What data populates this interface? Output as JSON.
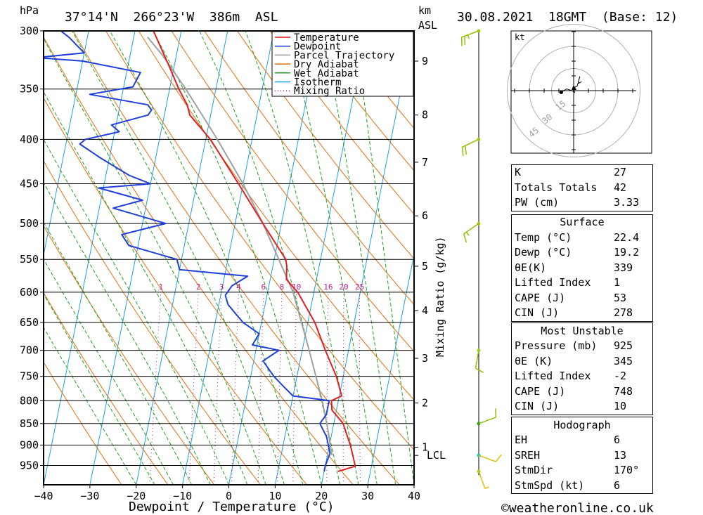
{
  "header": {
    "unit_hpa": "hPa",
    "location": "37°14'N  266°23'W  386m  ASL",
    "unit_km": "km",
    "unit_asl": "ASL",
    "datetime": "30.08.2021  18GMT  (Base: 12)"
  },
  "hodograph": {
    "unit": "kt",
    "ring_labels": [
      "15",
      "30",
      "45"
    ]
  },
  "footer": {
    "copyright": "©weatheronline.co.uk"
  },
  "chart_data": {
    "type": "skew-t log-p",
    "xlabel": "Dewpoint / Temperature (°C)",
    "ylabel_left": "hPa",
    "ylabel_right": "Mixing Ratio (g/kg)",
    "x_ticks": [
      -40,
      -30,
      -20,
      -10,
      0,
      10,
      20,
      30,
      40
    ],
    "pressure_ticks": [
      300,
      350,
      400,
      450,
      500,
      550,
      600,
      650,
      700,
      750,
      800,
      850,
      900,
      950
    ],
    "km_ticks": [
      {
        "label": "9",
        "p": 325
      },
      {
        "label": "8",
        "p": 375
      },
      {
        "label": "7",
        "p": 425
      },
      {
        "label": "6",
        "p": 490
      },
      {
        "label": "5",
        "p": 560
      },
      {
        "label": "4",
        "p": 630
      },
      {
        "label": "3",
        "p": 715
      },
      {
        "label": "2",
        "p": 805
      },
      {
        "label": "1",
        "p": 905
      },
      {
        "label": "LCL",
        "p": 925
      }
    ],
    "mixing_ratio_labels": [
      "1",
      "2",
      "3",
      "4",
      "6",
      "8",
      "10",
      "16",
      "20",
      "25"
    ],
    "mixing_ratio_values": [
      1,
      2,
      3,
      4,
      6,
      8,
      10,
      16,
      20,
      25
    ],
    "legend": [
      {
        "name": "Temperature",
        "color": "#e02020",
        "style": "solid"
      },
      {
        "name": "Dewpoint",
        "color": "#1f3fdc",
        "style": "solid"
      },
      {
        "name": "Parcel Trajectory",
        "color": "#a0a0a0",
        "style": "solid"
      },
      {
        "name": "Dry Adiabat",
        "color": "#e07010",
        "style": "solid"
      },
      {
        "name": "Wet Adiabat",
        "color": "#20a020",
        "style": "solid"
      },
      {
        "name": "Isotherm",
        "color": "#1f9fdc",
        "style": "solid"
      },
      {
        "name": "Mixing Ratio",
        "color": "#c0208f",
        "style": "dotted"
      }
    ],
    "temperature": [
      {
        "p": 965,
        "t": 23
      },
      {
        "p": 952,
        "t": 26.5
      },
      {
        "p": 925,
        "t": 25.5
      },
      {
        "p": 900,
        "t": 24.5
      },
      {
        "p": 850,
        "t": 22
      },
      {
        "p": 820,
        "t": 19
      },
      {
        "p": 800,
        "t": 18.5
      },
      {
        "p": 790,
        "t": 20.5
      },
      {
        "p": 750,
        "t": 18.5
      },
      {
        "p": 700,
        "t": 15
      },
      {
        "p": 650,
        "t": 11.5
      },
      {
        "p": 600,
        "t": 6.5
      },
      {
        "p": 580,
        "t": 3.5
      },
      {
        "p": 560,
        "t": 3
      },
      {
        "p": 550,
        "t": 2.5
      },
      {
        "p": 500,
        "t": -4
      },
      {
        "p": 450,
        "t": -11
      },
      {
        "p": 400,
        "t": -19
      },
      {
        "p": 375,
        "t": -24.5
      },
      {
        "p": 365,
        "t": -25.5
      },
      {
        "p": 350,
        "t": -28
      },
      {
        "p": 330,
        "t": -31
      },
      {
        "p": 300,
        "t": -36
      }
    ],
    "dewpoint": [
      {
        "p": 965,
        "t": 20
      },
      {
        "p": 950,
        "t": 20
      },
      {
        "p": 920,
        "t": 20.5
      },
      {
        "p": 880,
        "t": 19
      },
      {
        "p": 850,
        "t": 17
      },
      {
        "p": 830,
        "t": 18
      },
      {
        "p": 800,
        "t": 18
      },
      {
        "p": 790,
        "t": 10
      },
      {
        "p": 770,
        "t": 7.5
      },
      {
        "p": 750,
        "t": 5
      },
      {
        "p": 720,
        "t": 2
      },
      {
        "p": 700,
        "t": 5
      },
      {
        "p": 690,
        "t": -1
      },
      {
        "p": 670,
        "t": 0
      },
      {
        "p": 650,
        "t": -4
      },
      {
        "p": 635,
        "t": -6
      },
      {
        "p": 620,
        "t": -8
      },
      {
        "p": 605,
        "t": -9
      },
      {
        "p": 590,
        "t": -8
      },
      {
        "p": 575,
        "t": -5
      },
      {
        "p": 565,
        "t": -20
      },
      {
        "p": 550,
        "t": -21
      },
      {
        "p": 530,
        "t": -32
      },
      {
        "p": 515,
        "t": -34
      },
      {
        "p": 500,
        "t": -25
      },
      {
        "p": 480,
        "t": -37
      },
      {
        "p": 470,
        "t": -31
      },
      {
        "p": 455,
        "t": -41
      },
      {
        "p": 450,
        "t": -30
      },
      {
        "p": 440,
        "t": -35
      },
      {
        "p": 420,
        "t": -42
      },
      {
        "p": 405,
        "t": -47
      },
      {
        "p": 400,
        "t": -46
      },
      {
        "p": 392,
        "t": -39
      },
      {
        "p": 385,
        "t": -41
      },
      {
        "p": 375,
        "t": -33.5
      },
      {
        "p": 370,
        "t": -33
      },
      {
        "p": 365,
        "t": -34
      },
      {
        "p": 355,
        "t": -47
      },
      {
        "p": 348,
        "t": -38
      },
      {
        "p": 335,
        "t": -37
      },
      {
        "p": 325,
        "t": -50
      },
      {
        "p": 322,
        "t": -60
      },
      {
        "p": 318,
        "t": -50
      },
      {
        "p": 305,
        "t": -54
      },
      {
        "p": 300,
        "t": -56
      }
    ],
    "parcel": [
      {
        "p": 925,
        "t": 21
      },
      {
        "p": 850,
        "t": 18.5
      },
      {
        "p": 800,
        "t": 16.5
      },
      {
        "p": 700,
        "t": 11.5
      },
      {
        "p": 600,
        "t": 5.5
      },
      {
        "p": 550,
        "t": 1
      },
      {
        "p": 500,
        "t": -4
      },
      {
        "p": 450,
        "t": -10
      },
      {
        "p": 400,
        "t": -17.5
      },
      {
        "p": 350,
        "t": -26.5
      },
      {
        "p": 320,
        "t": -33
      },
      {
        "p": 305,
        "t": -37
      }
    ],
    "wind_barbs": [
      {
        "p": 300,
        "dir_deg": 250,
        "speed_kt": 25
      },
      {
        "p": 400,
        "dir_deg": 245,
        "speed_kt": 20
      },
      {
        "p": 500,
        "dir_deg": 235,
        "speed_kt": 15
      },
      {
        "p": 700,
        "dir_deg": 190,
        "speed_kt": 10
      },
      {
        "p": 850,
        "dir_deg": 70,
        "speed_kt": 10
      },
      {
        "p": 925,
        "dir_deg": 110,
        "speed_kt": 10
      },
      {
        "p": 965,
        "dir_deg": 160,
        "speed_kt": 5
      }
    ],
    "hodograph_trace_kt": [
      [
        -14,
        -2
      ],
      [
        -8,
        2
      ],
      [
        -2,
        0
      ],
      [
        1,
        -2
      ],
      [
        0,
        3
      ],
      [
        4,
        5
      ],
      [
        7,
        16
      ],
      [
        5,
        8
      ],
      [
        9,
        10
      ]
    ]
  },
  "indices": {
    "general": [
      {
        "label": "K",
        "value": "27"
      },
      {
        "label": "Totals Totals",
        "value": "42"
      },
      {
        "label": "PW (cm)",
        "value": "3.33"
      }
    ],
    "surface_title": "Surface",
    "surface": [
      {
        "label": "Temp (°C)",
        "value": "22.4"
      },
      {
        "label": "Dewp (°C)",
        "value": "19.2"
      },
      {
        "label": "θE(K)",
        "value": "339"
      },
      {
        "label": "Lifted Index",
        "value": "1"
      },
      {
        "label": "CAPE (J)",
        "value": "53"
      },
      {
        "label": "CIN (J)",
        "value": "278"
      }
    ],
    "mu_title": "Most Unstable",
    "mu": [
      {
        "label": "Pressure (mb)",
        "value": "925"
      },
      {
        "label": "θE (K)",
        "value": "345"
      },
      {
        "label": "Lifted Index",
        "value": "-2"
      },
      {
        "label": "CAPE (J)",
        "value": "748"
      },
      {
        "label": "CIN (J)",
        "value": "10"
      }
    ],
    "hodo_title": "Hodograph",
    "hodo": [
      {
        "label": "EH",
        "value": "6"
      },
      {
        "label": "SREH",
        "value": "13"
      },
      {
        "label": "StmDir",
        "value": "170°"
      },
      {
        "label": "StmSpd (kt)",
        "value": "6"
      }
    ]
  }
}
